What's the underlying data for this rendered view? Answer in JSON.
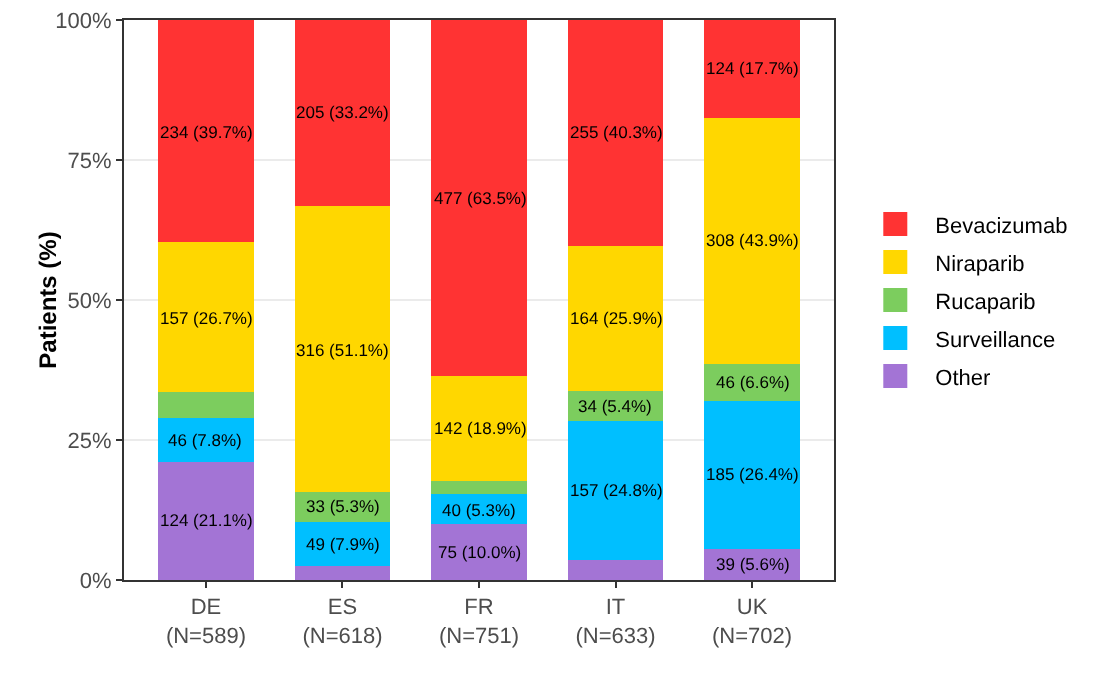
{
  "chart_data": {
    "type": "bar",
    "stacked": true,
    "ylabel": "Patients (%)",
    "categories": [
      "DE\n(N=589)",
      "ES\n(N=618)",
      "FR\n(N=751)",
      "IT\n(N=633)",
      "UK\n(N=702)"
    ],
    "series": [
      {
        "name": "Other",
        "color": "#a374d5",
        "values": [
          21.1,
          2.5,
          10.0,
          3.6,
          5.6
        ],
        "value_labels": [
          "124 (21.1%)",
          null,
          "75 (10.0%)",
          null,
          "39 (5.6%)"
        ]
      },
      {
        "name": "Surveillance",
        "color": "#00bfff",
        "values": [
          7.8,
          7.9,
          5.3,
          24.8,
          26.4
        ],
        "value_labels": [
          "46 (7.8%)",
          "49 (7.9%)",
          "40 (5.3%)",
          "157 (24.8%)",
          "185 (26.4%)"
        ]
      },
      {
        "name": "Rucaparib",
        "color": "#7ccd5e",
        "values": [
          4.7,
          5.3,
          2.3,
          5.4,
          6.6
        ],
        "value_labels": [
          null,
          "33 (5.3%)",
          null,
          "34 (5.4%)",
          "46 (6.6%)"
        ]
      },
      {
        "name": "Niraparib",
        "color": "#ffd700",
        "values": [
          26.7,
          51.1,
          18.9,
          25.9,
          43.9
        ],
        "value_labels": [
          "157 (26.7%)",
          "316 (51.1%)",
          "142 (18.9%)",
          "164 (25.9%)",
          "308 (43.9%)"
        ]
      },
      {
        "name": "Bevacizumab",
        "color": "#ff3333",
        "values": [
          39.7,
          33.2,
          63.5,
          40.3,
          17.7
        ],
        "value_labels": [
          "234 (39.7%)",
          "205 (33.2%)",
          "477 (63.5%)",
          "255 (40.3%)",
          "124 (17.7%)"
        ]
      }
    ],
    "ylim": [
      0,
      100
    ],
    "yticks": [
      {
        "value": 0,
        "label": "0%"
      },
      {
        "value": 25,
        "label": "25%"
      },
      {
        "value": 50,
        "label": "50%"
      },
      {
        "value": 75,
        "label": "75%"
      },
      {
        "value": 100,
        "label": "100%"
      }
    ],
    "grid": "y",
    "legend": "right"
  }
}
